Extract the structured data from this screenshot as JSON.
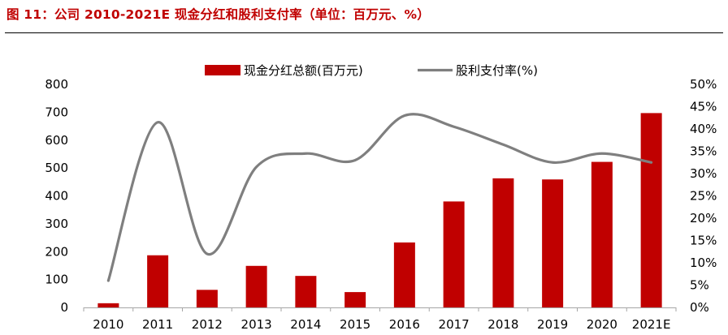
{
  "header": {
    "title": "图 11：公司 2010-2021E 现金分红和股利支付率（单位：百万元、%）"
  },
  "chart_data": {
    "type": "bar",
    "categories": [
      "2010",
      "2011",
      "2012",
      "2013",
      "2014",
      "2015",
      "2016",
      "2017",
      "2018",
      "2019",
      "2020",
      "2021E"
    ],
    "series": [
      {
        "name": "现金分红总额(百万元)",
        "kind": "bar",
        "axis": "left",
        "color": "#c00000",
        "values": [
          15,
          187,
          63,
          149,
          113,
          55,
          233,
          380,
          463,
          459,
          522,
          697
        ]
      },
      {
        "name": "股利支付率(%)",
        "kind": "line",
        "axis": "right",
        "color": "#7f7f7f",
        "values": [
          6,
          41.5,
          12,
          31.5,
          34.5,
          33,
          43,
          40.5,
          36.5,
          32.5,
          34.5,
          32.5
        ]
      }
    ],
    "y_left": {
      "ylim": [
        0,
        800
      ],
      "ticks": [
        0,
        100,
        200,
        300,
        400,
        500,
        600,
        700,
        800
      ]
    },
    "y_right": {
      "ylim": [
        0,
        50
      ],
      "ticks": [
        "0%",
        "5%",
        "10%",
        "15%",
        "20%",
        "25%",
        "30%",
        "35%",
        "40%",
        "45%",
        "50%"
      ]
    },
    "legend_position": "top-center"
  }
}
